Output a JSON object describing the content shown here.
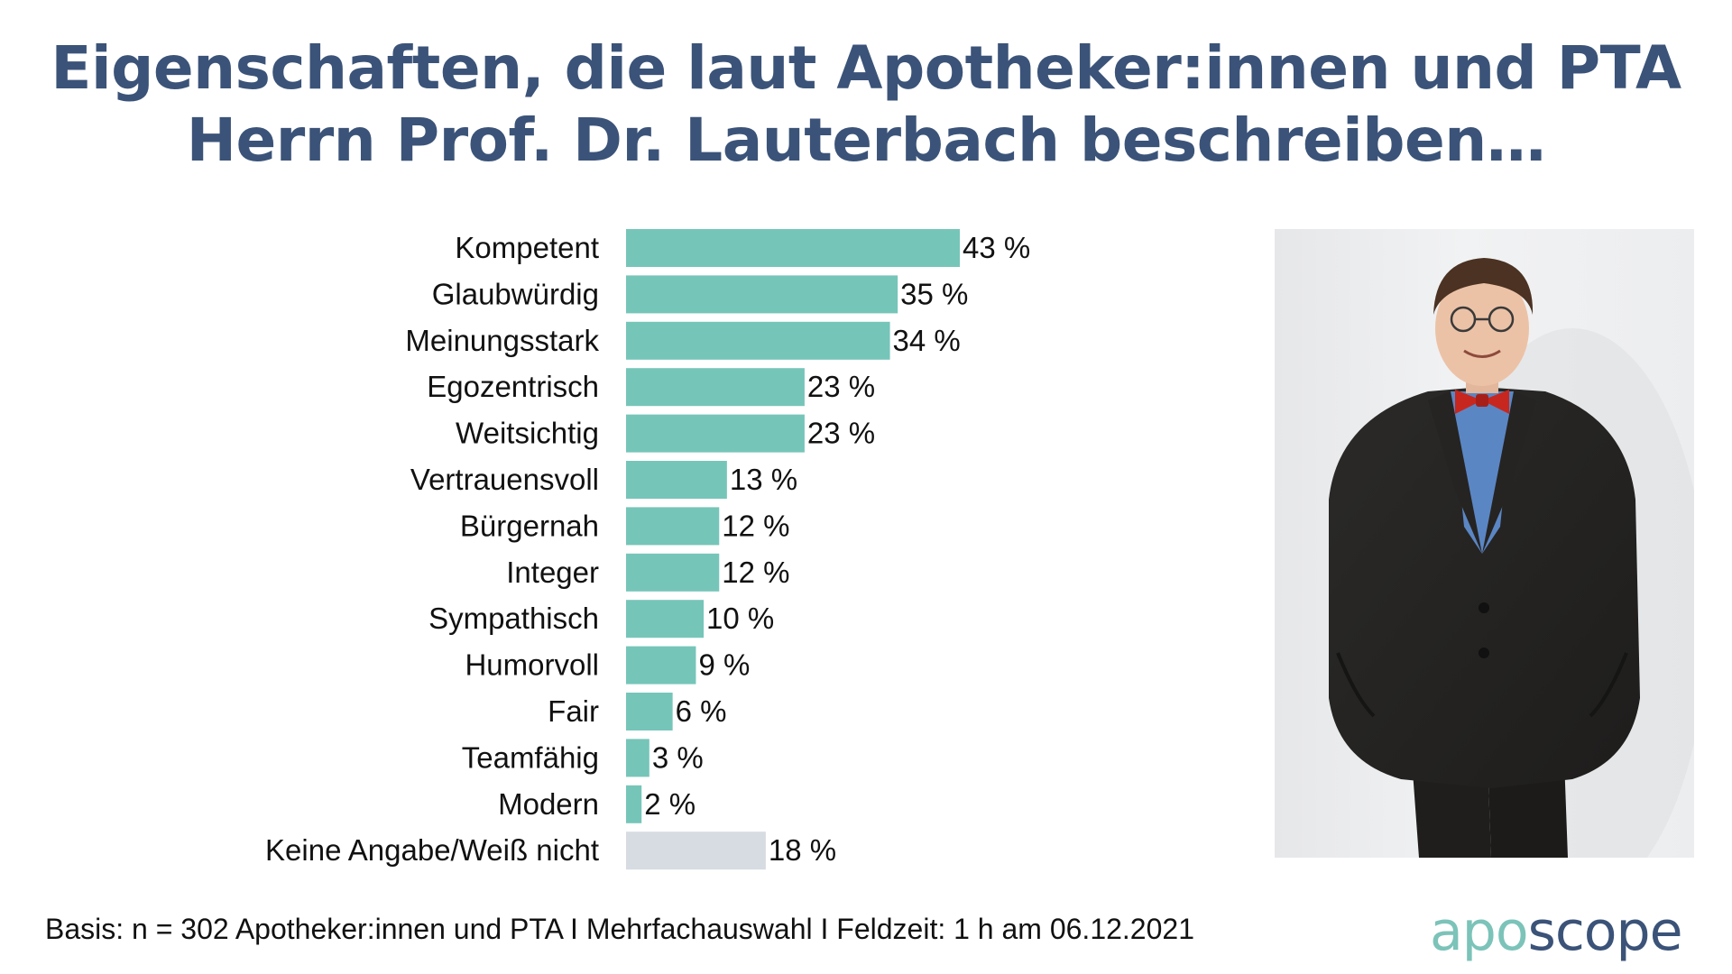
{
  "header": {
    "title_line1": "Eigenschaften, die laut Apotheker:innen und PTA",
    "title_line2": "Herrn Prof. Dr. Lauterbach beschreiben…"
  },
  "chart_data": {
    "type": "bar",
    "orientation": "horizontal",
    "title": "Eigenschaften, die laut Apotheker:innen und PTA Herrn Prof. Dr. Lauterbach beschreiben…",
    "categories": [
      "Kompetent",
      "Glaubwürdig",
      "Meinungsstark",
      "Egozentrisch",
      "Weitsichtig",
      "Vertrauensvoll",
      "Bürgernah",
      "Integer",
      "Sympathisch",
      "Humorvoll",
      "Fair",
      "Teamfähig",
      "Modern",
      "Keine Angabe/Weiß nicht"
    ],
    "values": [
      43,
      35,
      34,
      23,
      23,
      13,
      12,
      12,
      10,
      9,
      6,
      3,
      2,
      18
    ],
    "value_labels": [
      "43 %",
      "35 %",
      "34 %",
      "23 %",
      "23 %",
      "13 %",
      "12 %",
      "12 %",
      "10 %",
      "9 %",
      "6 %",
      "3 %",
      "2 %",
      "18 %"
    ],
    "unit": "%",
    "xlim": [
      0,
      43
    ],
    "grid": false,
    "legend": "none",
    "colors": {
      "bar": "#76c5b9",
      "bar_none": "#d7dbe2"
    }
  },
  "footer": {
    "basis": "Basis: n = 302 Apotheker:innen und PTA I Mehrfachauswahl I Feldzeit: 1 h am 06.12.2021",
    "logo_part1": "apo",
    "logo_part2": "scope"
  },
  "colors": {
    "title": "#3b5378",
    "logo_accent": "#7cc3b9",
    "logo_dark": "#3b5378"
  }
}
